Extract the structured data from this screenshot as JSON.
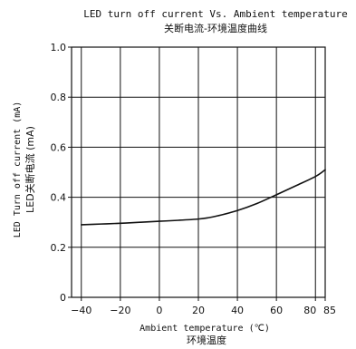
{
  "chart_data": {
    "type": "line",
    "title": "LED turn off current Vs. Ambient temperature",
    "subtitle": "关断电流-环境温度曲线",
    "xlabel": "Ambient temperature (℃)",
    "xlabel_cn": "环境温度",
    "ylabel": "LED Turn off current (mA)",
    "ylabel_cn": "LED关断电流 (mA)",
    "xlim": [
      -45,
      85
    ],
    "ylim": [
      0,
      1.0
    ],
    "x_ticks": [
      -40,
      -20,
      0,
      20,
      40,
      60,
      80,
      85
    ],
    "x_tick_labels": [
      "−40",
      "−20",
      "0",
      "20",
      "40",
      "60",
      "80",
      "85"
    ],
    "y_ticks": [
      0,
      0.2,
      0.4,
      0.6,
      0.8,
      1.0
    ],
    "y_tick_labels": [
      "0",
      "0.2",
      "0.4",
      "0.6",
      "0.8",
      "1.0"
    ],
    "grid": true,
    "series": [
      {
        "x": [
          -40,
          -30,
          -20,
          -10,
          0,
          10,
          20,
          25,
          30,
          40,
          50,
          60,
          70,
          80,
          85
        ],
        "values": [
          0.29,
          0.293,
          0.296,
          0.3,
          0.304,
          0.308,
          0.313,
          0.318,
          0.326,
          0.347,
          0.375,
          0.41,
          0.446,
          0.483,
          0.51
        ]
      }
    ]
  }
}
